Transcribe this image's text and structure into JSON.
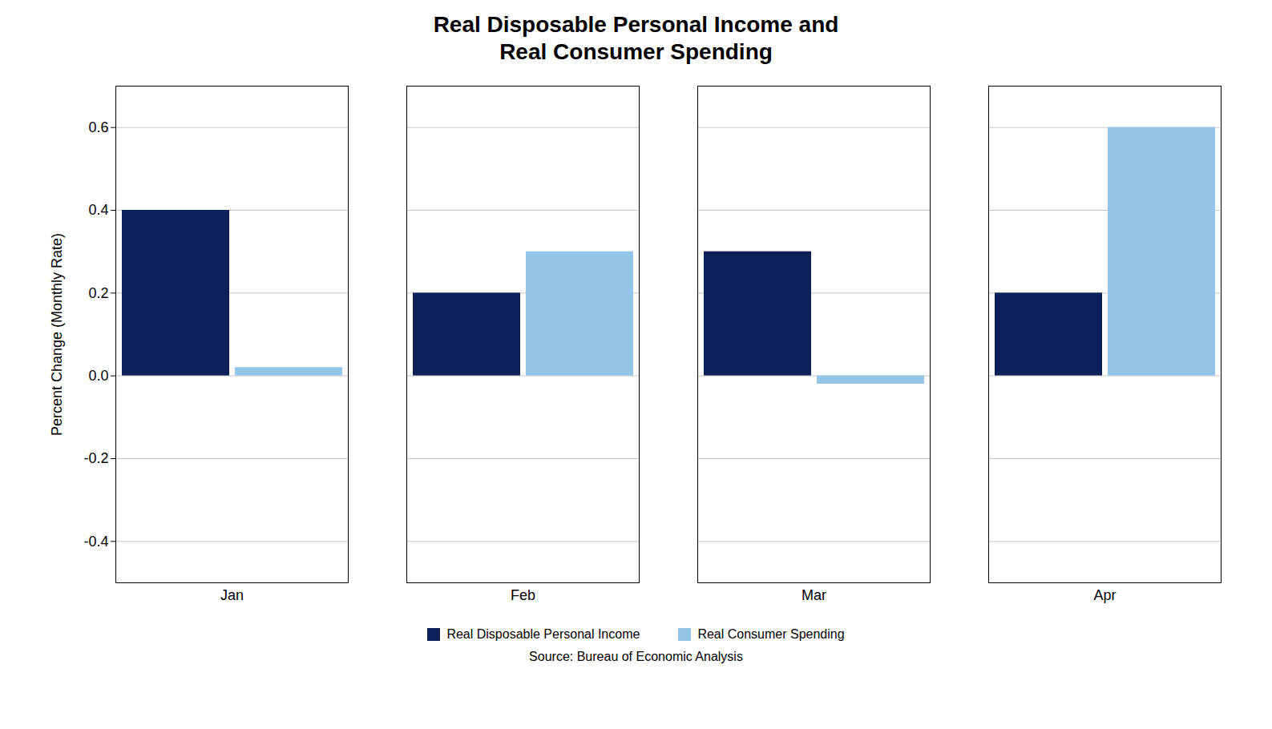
{
  "chart_data": {
    "type": "bar",
    "title": "Real Disposable Personal Income and\nReal Consumer Spending",
    "ylabel": "Percent Change (Monthly Rate)",
    "source": "Source:  Bureau of Economic Analysis",
    "categories": [
      "Jan",
      "Feb",
      "Mar",
      "Apr"
    ],
    "series": [
      {
        "name": "Real Disposable Personal Income",
        "color": "#0d2158",
        "values": [
          0.4,
          0.2,
          0.3,
          0.2
        ]
      },
      {
        "name": "Real Consumer Spending",
        "color": "#92c5e8",
        "values": [
          0.02,
          0.3,
          -0.02,
          0.6
        ]
      }
    ],
    "ylim": [
      -0.5,
      0.7
    ],
    "yticks": [
      -0.4,
      -0.2,
      {
        "value": 0.0,
        "label": "0.0"
      },
      0.2,
      0.4,
      0.6
    ],
    "grid": "y",
    "legend": "bottom"
  }
}
